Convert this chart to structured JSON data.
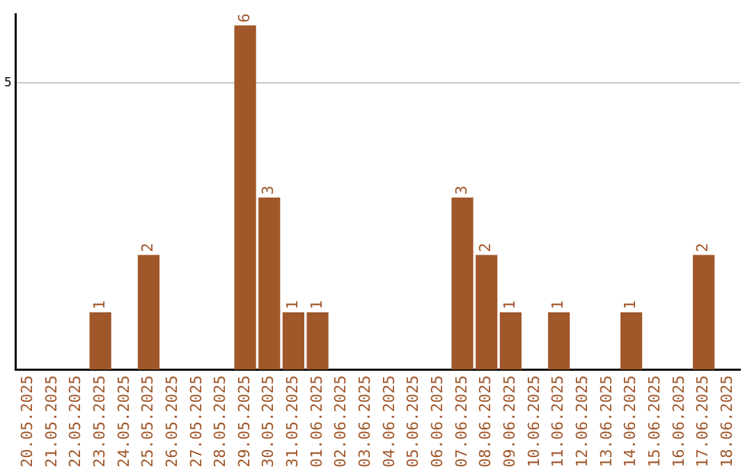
{
  "chart_data": {
    "type": "bar",
    "categories": [
      "20.05.2025",
      "21.05.2025",
      "22.05.2025",
      "23.05.2025",
      "24.05.2025",
      "25.05.2025",
      "26.05.2025",
      "27.05.2025",
      "28.05.2025",
      "29.05.2025",
      "30.05.2025",
      "31.05.2025",
      "01.06.2025",
      "02.06.2025",
      "03.06.2025",
      "04.06.2025",
      "05.06.2025",
      "06.06.2025",
      "07.06.2025",
      "08.06.2025",
      "09.06.2025",
      "10.06.2025",
      "11.06.2025",
      "12.06.2025",
      "13.06.2025",
      "14.06.2025",
      "15.06.2025",
      "16.06.2025",
      "17.06.2025",
      "18.06.2025"
    ],
    "values": [
      0,
      0,
      0,
      1,
      0,
      2,
      0,
      0,
      0,
      6,
      3,
      1,
      1,
      0,
      0,
      0,
      0,
      0,
      3,
      2,
      1,
      0,
      1,
      0,
      0,
      1,
      0,
      0,
      2,
      0
    ],
    "value_labels": [
      null,
      null,
      null,
      "1",
      null,
      "2",
      null,
      null,
      null,
      "6",
      "3",
      "1",
      "1",
      null,
      null,
      null,
      null,
      null,
      "3",
      "2",
      "1",
      null,
      "1",
      null,
      null,
      "1",
      null,
      null,
      "2",
      null
    ],
    "color": "#a0572a",
    "ylim": [
      0,
      6.2
    ],
    "yticks": [
      5
    ],
    "grid": "y",
    "legend": false
  }
}
